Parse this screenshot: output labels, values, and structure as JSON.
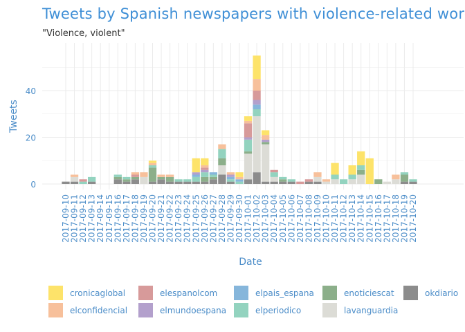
{
  "chart_data": {
    "type": "bar",
    "stacked": true,
    "title": "Tweets by Spanish newspapers with violence-related words",
    "subtitle": "\"Violence, violent\"",
    "xlabel": "Date",
    "ylabel": "Tweets",
    "ylim": [
      0,
      58
    ],
    "yticks": [
      0,
      20,
      40
    ],
    "grid": true,
    "legend_position": "bottom",
    "categories": [
      "2017-09-10",
      "2017-09-11",
      "2017-09-12",
      "2017-09-13",
      "2017-09-14",
      "2017-09-15",
      "2017-09-16",
      "2017-09-17",
      "2017-09-18",
      "2017-09-19",
      "2017-09-20",
      "2017-09-21",
      "2017-09-22",
      "2017-09-23",
      "2017-09-24",
      "2017-09-25",
      "2017-09-26",
      "2017-09-27",
      "2017-09-28",
      "2017-09-29",
      "2017-09-30",
      "2017-10-01",
      "2017-10-02",
      "2017-10-03",
      "2017-10-04",
      "2017-10-05",
      "2017-10-06",
      "2017-10-07",
      "2017-10-08",
      "2017-10-09",
      "2017-10-10",
      "2017-10-11",
      "2017-10-12",
      "2017-10-13",
      "2017-10-14",
      "2017-10-15",
      "2017-10-16",
      "2017-10-17",
      "2017-10-18",
      "2017-10-19",
      "2017-10-20"
    ],
    "series": [
      {
        "name": "okdiario",
        "color": "#8c8c8c",
        "values": [
          1,
          1,
          0,
          1,
          0,
          0,
          2,
          1,
          2,
          0,
          1,
          2,
          1,
          1,
          1,
          1,
          1,
          2,
          4,
          1,
          0,
          2,
          5,
          1,
          1,
          1,
          1,
          0,
          1,
          1,
          0,
          0,
          0,
          0,
          0,
          0,
          0,
          0,
          0,
          1,
          1
        ]
      },
      {
        "name": "lavanguardia",
        "color": "#dcdcd6",
        "values": [
          0,
          2,
          0,
          0,
          0,
          0,
          0,
          0,
          0,
          3,
          0,
          0,
          0,
          0,
          0,
          0,
          0,
          0,
          4,
          0,
          0,
          11,
          24,
          16,
          2,
          0,
          0,
          0,
          0,
          2,
          1,
          2,
          0,
          2,
          4,
          0,
          0,
          1,
          2,
          0,
          0
        ]
      },
      {
        "name": "enoticiescat",
        "color": "#8caf8a",
        "values": [
          0,
          0,
          0,
          0,
          0,
          0,
          1,
          1,
          1,
          0,
          6,
          1,
          2,
          0,
          0,
          0,
          2,
          1,
          3,
          0,
          0,
          1,
          0,
          1,
          0,
          1,
          0,
          0,
          0,
          0,
          0,
          0,
          0,
          0,
          2,
          0,
          2,
          0,
          0,
          3,
          0
        ]
      },
      {
        "name": "elperiodico",
        "color": "#93d3bf",
        "values": [
          0,
          0,
          1,
          2,
          0,
          0,
          1,
          1,
          0,
          0,
          1,
          0,
          0,
          1,
          1,
          2,
          2,
          1,
          4,
          1,
          1,
          5,
          3,
          0,
          2,
          1,
          1,
          0,
          0,
          0,
          0,
          2,
          2,
          2,
          2,
          0,
          0,
          0,
          0,
          1,
          1
        ]
      },
      {
        "name": "elpais_espana",
        "color": "#86b6db",
        "values": [
          0,
          0,
          0,
          0,
          0,
          0,
          0,
          0,
          0,
          0,
          0,
          0,
          0,
          0,
          0,
          1,
          0,
          1,
          0,
          1,
          1,
          0,
          2,
          0,
          0,
          0,
          0,
          0,
          0,
          0,
          0,
          0,
          0,
          0,
          0,
          0,
          0,
          0,
          0,
          0,
          0
        ]
      },
      {
        "name": "elmundoespana",
        "color": "#b3a0cc",
        "values": [
          0,
          0,
          0,
          0,
          0,
          0,
          0,
          0,
          0,
          0,
          0,
          0,
          0,
          0,
          0,
          1,
          1,
          0,
          0,
          1,
          0,
          1,
          2,
          1,
          0,
          0,
          0,
          0,
          0,
          0,
          0,
          0,
          0,
          0,
          0,
          0,
          0,
          0,
          0,
          0,
          0
        ]
      },
      {
        "name": "elespanolcom",
        "color": "#d79a9a",
        "values": [
          0,
          0,
          1,
          0,
          0,
          0,
          0,
          0,
          1,
          0,
          0,
          0,
          0,
          0,
          0,
          0,
          1,
          0,
          0,
          0,
          0,
          6,
          4,
          0,
          1,
          0,
          0,
          1,
          1,
          0,
          0,
          0,
          0,
          0,
          0,
          0,
          0,
          0,
          0,
          0,
          0
        ]
      },
      {
        "name": "elconfidencial",
        "color": "#f7c09b",
        "values": [
          0,
          1,
          0,
          0,
          0,
          0,
          0,
          0,
          1,
          2,
          1,
          1,
          1,
          0,
          0,
          0,
          1,
          0,
          2,
          1,
          1,
          1,
          5,
          2,
          0,
          0,
          0,
          0,
          0,
          2,
          1,
          0,
          0,
          0,
          0,
          0,
          0,
          0,
          2,
          0,
          0
        ]
      },
      {
        "name": "cronicaglobal",
        "color": "#fde36a",
        "values": [
          0,
          0,
          0,
          0,
          0,
          0,
          0,
          0,
          0,
          0,
          1,
          0,
          0,
          0,
          0,
          6,
          3,
          0,
          0,
          0,
          2,
          2,
          10,
          2,
          0,
          0,
          0,
          0,
          0,
          0,
          0,
          5,
          0,
          4,
          6,
          11,
          0,
          0,
          0,
          0,
          0
        ]
      }
    ],
    "legend_order": [
      "cronicaglobal",
      "elconfidencial",
      "elespanolcom",
      "elmundoespana",
      "elpais_espana",
      "elperiodico",
      "enoticiescat",
      "lavanguardia",
      "okdiario"
    ]
  }
}
